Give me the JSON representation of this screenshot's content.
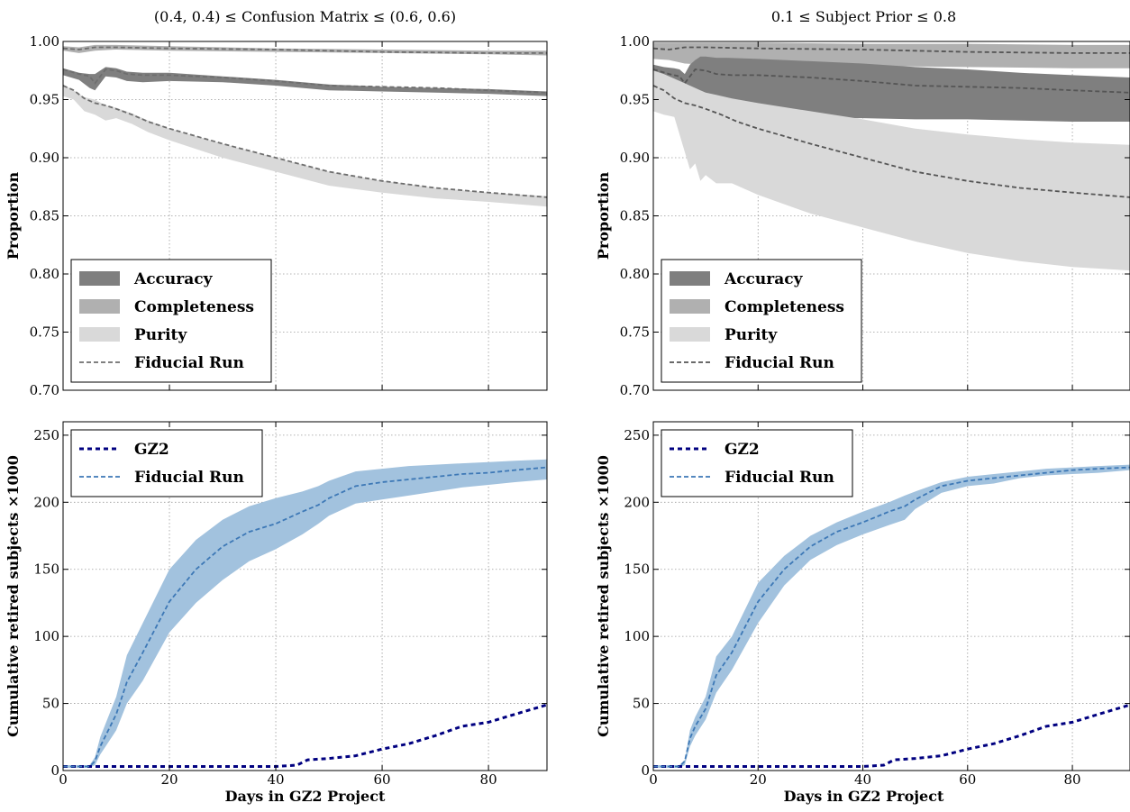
{
  "chart_data": [
    {
      "panel": "top-left",
      "type": "area",
      "title": "(0.4, 0.4) ≤ Confusion Matrix ≤ (0.6, 0.6)",
      "xlabel": "",
      "ylabel": "Proportion",
      "xlim": [
        0,
        91
      ],
      "ylim": [
        0.7,
        1.0
      ],
      "xticks": [
        0,
        20,
        40,
        60,
        80
      ],
      "yticks": [
        "0.70",
        "0.75",
        "0.80",
        "0.85",
        "0.90",
        "0.95",
        "1.00"
      ],
      "show_xticklabels": false,
      "grid": true,
      "legend": {
        "position": "lower-left",
        "entries": [
          "Accuracy",
          "Completeness",
          "Purity",
          "Fiducial Run"
        ]
      },
      "series": [
        {
          "name": "Accuracy",
          "kind": "band",
          "color": "#7f7f7f",
          "x": [
            0,
            3,
            5,
            6,
            8,
            10,
            12,
            15,
            20,
            30,
            40,
            50,
            60,
            70,
            80,
            91
          ],
          "low": [
            0.971,
            0.967,
            0.96,
            0.958,
            0.97,
            0.969,
            0.966,
            0.965,
            0.966,
            0.965,
            0.962,
            0.958,
            0.957,
            0.956,
            0.955,
            0.953
          ],
          "high": [
            0.977,
            0.973,
            0.972,
            0.972,
            0.978,
            0.977,
            0.974,
            0.973,
            0.973,
            0.97,
            0.967,
            0.963,
            0.961,
            0.96,
            0.959,
            0.957
          ]
        },
        {
          "name": "Completeness",
          "kind": "band",
          "color": "#b0b0b0",
          "x": [
            0,
            3,
            6,
            10,
            20,
            40,
            60,
            80,
            91
          ],
          "low": [
            0.992,
            0.99,
            0.992,
            0.993,
            0.992,
            0.991,
            0.99,
            0.989,
            0.988
          ],
          "high": [
            0.996,
            0.995,
            0.997,
            0.997,
            0.996,
            0.994,
            0.993,
            0.992,
            0.992
          ]
        },
        {
          "name": "Purity",
          "kind": "band",
          "color": "#d9d9d9",
          "x": [
            0,
            2,
            4,
            6,
            8,
            10,
            13,
            16,
            20,
            30,
            40,
            50,
            60,
            70,
            80,
            91
          ],
          "low": [
            0.953,
            0.95,
            0.94,
            0.937,
            0.932,
            0.934,
            0.929,
            0.922,
            0.915,
            0.9,
            0.888,
            0.876,
            0.87,
            0.865,
            0.862,
            0.858
          ],
          "high": [
            0.963,
            0.958,
            0.952,
            0.95,
            0.945,
            0.943,
            0.938,
            0.932,
            0.925,
            0.912,
            0.9,
            0.888,
            0.88,
            0.874,
            0.87,
            0.867
          ]
        },
        {
          "name": "Fiducial Run",
          "kind": "line",
          "style": "dashed",
          "color": "#6e6e6e",
          "ref": [
            "acc",
            "comp",
            "pur"
          ],
          "lines": [
            {
              "x": [
                0,
                3,
                5,
                6,
                8,
                10,
                12,
                15,
                20,
                30,
                40,
                50,
                60,
                70,
                80,
                91
              ],
              "y": [
                0.976,
                0.972,
                0.97,
                0.964,
                0.976,
                0.975,
                0.972,
                0.971,
                0.971,
                0.969,
                0.966,
                0.962,
                0.961,
                0.96,
                0.958,
                0.956
              ]
            },
            {
              "x": [
                0,
                3,
                6,
                10,
                20,
                40,
                60,
                80,
                91
              ],
              "y": [
                0.994,
                0.993,
                0.995,
                0.995,
                0.994,
                0.993,
                0.991,
                0.99,
                0.99
              ]
            },
            {
              "x": [
                0,
                2,
                4,
                6,
                8,
                10,
                13,
                16,
                20,
                30,
                40,
                50,
                60,
                70,
                80,
                91
              ],
              "y": [
                0.962,
                0.958,
                0.951,
                0.947,
                0.945,
                0.942,
                0.937,
                0.931,
                0.925,
                0.912,
                0.9,
                0.888,
                0.88,
                0.874,
                0.87,
                0.866
              ]
            }
          ]
        }
      ]
    },
    {
      "panel": "top-right",
      "type": "area",
      "title": "0.1 ≤ Subject Prior ≤ 0.8",
      "xlabel": "",
      "ylabel": "Proportion",
      "xlim": [
        0,
        91
      ],
      "ylim": [
        0.7,
        1.0
      ],
      "xticks": [
        0,
        20,
        40,
        60,
        80
      ],
      "yticks": [
        "0.70",
        "0.75",
        "0.80",
        "0.85",
        "0.90",
        "0.95",
        "1.00"
      ],
      "show_xticklabels": false,
      "grid": true,
      "legend": {
        "position": "lower-left",
        "entries": [
          "Accuracy",
          "Completeness",
          "Purity",
          "Fiducial Run"
        ]
      },
      "series": [
        {
          "name": "Completeness",
          "kind": "band",
          "color": "#b0b0b0",
          "x": [
            0,
            3,
            6,
            10,
            20,
            40,
            60,
            80,
            91
          ],
          "low": [
            0.985,
            0.984,
            0.981,
            0.98,
            0.98,
            0.979,
            0.978,
            0.977,
            0.977
          ],
          "high": [
            0.999,
            0.999,
            0.999,
            0.999,
            0.999,
            0.998,
            0.998,
            0.997,
            0.997
          ]
        },
        {
          "name": "Accuracy",
          "kind": "band",
          "color": "#7f7f7f",
          "x": [
            0,
            2,
            4,
            5,
            6,
            7,
            8,
            9,
            10,
            12,
            14,
            20,
            30,
            40,
            50,
            60,
            70,
            80,
            91
          ],
          "low": [
            0.96,
            0.956,
            0.953,
            0.952,
            0.94,
            0.927,
            0.932,
            0.938,
            0.935,
            0.93,
            0.932,
            0.933,
            0.934,
            0.934,
            0.933,
            0.933,
            0.932,
            0.931,
            0.931
          ],
          "high": [
            0.98,
            0.978,
            0.977,
            0.976,
            0.972,
            0.98,
            0.984,
            0.987,
            0.987,
            0.986,
            0.986,
            0.985,
            0.983,
            0.981,
            0.978,
            0.976,
            0.973,
            0.971,
            0.969
          ]
        },
        {
          "name": "Purity",
          "kind": "band",
          "color": "#d9d9d9",
          "x": [
            0,
            2,
            4,
            6,
            7,
            8,
            9,
            10,
            12,
            15,
            20,
            30,
            40,
            50,
            60,
            70,
            80,
            91
          ],
          "low": [
            0.94,
            0.937,
            0.935,
            0.905,
            0.89,
            0.895,
            0.88,
            0.885,
            0.878,
            0.878,
            0.868,
            0.852,
            0.84,
            0.828,
            0.818,
            0.811,
            0.806,
            0.803
          ],
          "high": [
            0.975,
            0.972,
            0.968,
            0.964,
            0.962,
            0.96,
            0.958,
            0.956,
            0.954,
            0.951,
            0.947,
            0.94,
            0.933,
            0.925,
            0.92,
            0.916,
            0.913,
            0.911
          ]
        },
        {
          "name": "Fiducial Run",
          "kind": "line",
          "style": "dashed",
          "color": "#555555",
          "ref": [
            "acc",
            "comp",
            "pur"
          ],
          "lines": [
            {
              "x": [
                0,
                3,
                5,
                6,
                8,
                10,
                12,
                15,
                20,
                30,
                40,
                50,
                60,
                70,
                80,
                91
              ],
              "y": [
                0.976,
                0.972,
                0.97,
                0.964,
                0.976,
                0.975,
                0.972,
                0.971,
                0.971,
                0.969,
                0.966,
                0.962,
                0.961,
                0.96,
                0.958,
                0.956
              ]
            },
            {
              "x": [
                0,
                3,
                6,
                10,
                20,
                40,
                60,
                80,
                91
              ],
              "y": [
                0.994,
                0.993,
                0.995,
                0.995,
                0.994,
                0.993,
                0.991,
                0.99,
                0.99
              ]
            },
            {
              "x": [
                0,
                2,
                4,
                6,
                8,
                10,
                13,
                16,
                20,
                30,
                40,
                50,
                60,
                70,
                80,
                91
              ],
              "y": [
                0.962,
                0.958,
                0.951,
                0.947,
                0.945,
                0.942,
                0.937,
                0.931,
                0.925,
                0.912,
                0.9,
                0.888,
                0.88,
                0.874,
                0.87,
                0.866
              ]
            }
          ]
        }
      ]
    },
    {
      "panel": "bottom-left",
      "type": "area",
      "title": "",
      "xlabel": "Days in GZ2 Project",
      "ylabel": "Cumulative retired subjects ×1000",
      "xlim": [
        0,
        91
      ],
      "ylim": [
        0,
        260
      ],
      "xticks": [
        0,
        20,
        40,
        60,
        80
      ],
      "yticks": [
        "0",
        "50",
        "100",
        "150",
        "200",
        "250"
      ],
      "show_xticklabels": true,
      "grid": true,
      "legend": {
        "position": "upper-left",
        "entries": [
          "GZ2",
          "Fiducial Run"
        ]
      },
      "series": [
        {
          "name": "Fiducial Run",
          "kind": "band",
          "color": "#a2c2de",
          "x": [
            0,
            3,
            5,
            6,
            7,
            8,
            10,
            12,
            15,
            20,
            25,
            30,
            35,
            40,
            45,
            48,
            50,
            55,
            60,
            65,
            70,
            75,
            80,
            85,
            91
          ],
          "low": [
            2,
            2,
            2,
            4,
            12,
            18,
            30,
            50,
            67,
            103,
            125,
            142,
            156,
            165,
            176,
            184,
            190,
            199,
            202,
            205,
            208,
            211,
            213,
            215,
            217
          ],
          "high": [
            4,
            4,
            4,
            10,
            25,
            35,
            55,
            86,
            110,
            150,
            172,
            187,
            197,
            203,
            208,
            212,
            216,
            223,
            225,
            227,
            228,
            229,
            230,
            231,
            232
          ]
        },
        {
          "name": "GZ2",
          "kind": "line",
          "style": "dashed-bold",
          "color": "#000080",
          "x": [
            0,
            10,
            20,
            30,
            40,
            44,
            46,
            50,
            55,
            58,
            60,
            65,
            70,
            75,
            80,
            85,
            91
          ],
          "y": [
            3,
            3,
            3,
            3,
            3,
            4,
            8,
            9,
            11,
            14,
            16,
            20,
            26,
            33,
            36,
            42,
            49
          ]
        },
        {
          "name": "Fiducial Run",
          "kind": "line",
          "style": "dashed",
          "color": "#3d78b6",
          "x": [
            0,
            3,
            5,
            6,
            7,
            8,
            10,
            12,
            15,
            20,
            25,
            30,
            35,
            40,
            45,
            48,
            50,
            55,
            60,
            65,
            70,
            75,
            80,
            85,
            91
          ],
          "y": [
            3,
            3,
            3,
            7,
            18,
            26,
            42,
            66,
            88,
            126,
            150,
            167,
            178,
            184,
            193,
            198,
            203,
            212,
            215,
            217,
            219,
            221,
            222,
            224,
            226
          ]
        }
      ]
    },
    {
      "panel": "bottom-right",
      "type": "area",
      "title": "",
      "xlabel": "Days in GZ2 Project",
      "ylabel": "Cumulative retired subjects ×1000",
      "xlim": [
        0,
        91
      ],
      "ylim": [
        0,
        260
      ],
      "xticks": [
        0,
        20,
        40,
        60,
        80
      ],
      "yticks": [
        "0",
        "50",
        "100",
        "150",
        "200",
        "250"
      ],
      "show_xticklabels": true,
      "grid": true,
      "legend": {
        "position": "upper-left",
        "entries": [
          "GZ2",
          "Fiducial Run"
        ]
      },
      "series": [
        {
          "name": "Fiducial Run",
          "kind": "band",
          "color": "#a2c2de",
          "x": [
            0,
            3,
            5,
            6,
            7,
            8,
            10,
            12,
            15,
            20,
            25,
            30,
            35,
            40,
            45,
            48,
            50,
            55,
            60,
            65,
            70,
            75,
            80,
            85,
            91
          ],
          "low": [
            2,
            2,
            2,
            4,
            18,
            26,
            38,
            58,
            75,
            110,
            138,
            157,
            168,
            176,
            183,
            187,
            195,
            207,
            212,
            214,
            218,
            220,
            221,
            222,
            224
          ],
          "high": [
            4,
            4,
            4,
            8,
            30,
            40,
            55,
            85,
            100,
            140,
            160,
            175,
            185,
            193,
            200,
            205,
            208,
            215,
            219,
            221,
            223,
            225,
            226,
            227,
            228
          ]
        },
        {
          "name": "GZ2",
          "kind": "line",
          "style": "dashed-bold",
          "color": "#000080",
          "x": [
            0,
            10,
            20,
            30,
            40,
            44,
            46,
            50,
            55,
            58,
            60,
            65,
            70,
            75,
            80,
            85,
            91
          ],
          "y": [
            3,
            3,
            3,
            3,
            3,
            4,
            8,
            9,
            11,
            14,
            16,
            20,
            26,
            33,
            36,
            42,
            49
          ]
        },
        {
          "name": "Fiducial Run",
          "kind": "line",
          "style": "dashed",
          "color": "#3d78b6",
          "x": [
            0,
            3,
            5,
            6,
            7,
            8,
            10,
            12,
            15,
            20,
            25,
            30,
            35,
            40,
            45,
            48,
            50,
            55,
            60,
            65,
            70,
            75,
            80,
            85,
            91
          ],
          "y": [
            3,
            3,
            3,
            7,
            24,
            33,
            46,
            71,
            88,
            126,
            150,
            167,
            178,
            185,
            193,
            197,
            202,
            212,
            216,
            218,
            220,
            222,
            224,
            225,
            226
          ]
        }
      ]
    }
  ]
}
